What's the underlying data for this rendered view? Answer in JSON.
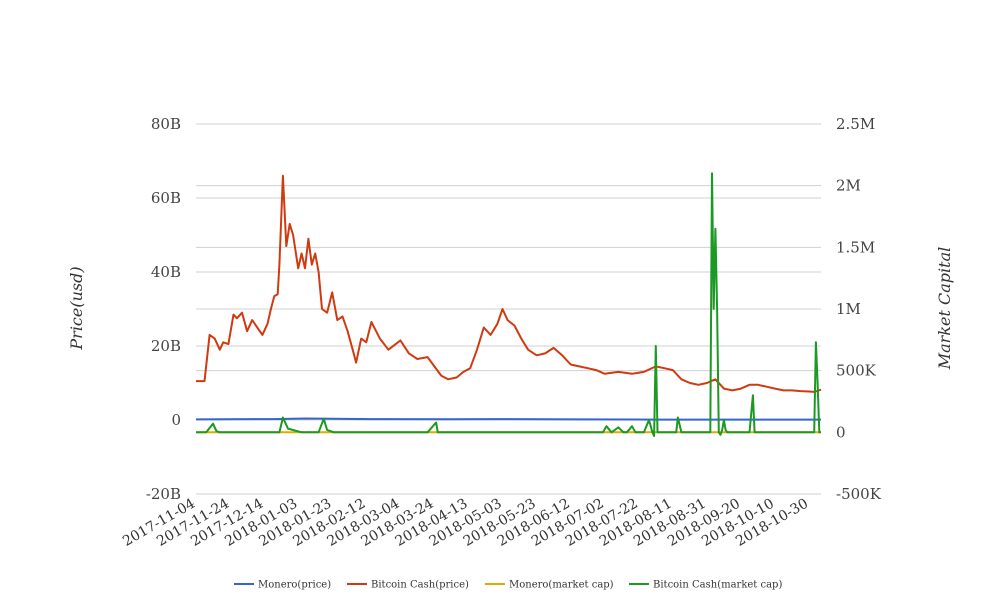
{
  "chart_data": {
    "type": "line",
    "title": "",
    "ylabel_left": "Price(usd)",
    "ylabel_right": "Market Capital",
    "ylim_left": [
      -20000000000,
      80000000000
    ],
    "ylim_right": [
      -500000,
      2500000
    ],
    "yticks_left": [
      "80B",
      "60B",
      "40B",
      "20B",
      "0",
      "-20B"
    ],
    "yticks_right": [
      "2.5M",
      "2M",
      "1.5M",
      "1M",
      "500K",
      "0",
      "-500K"
    ],
    "x_start": "2017-11-04",
    "x_end": "2018-11-06",
    "xticks": [
      "2017-11-04",
      "2017-11-24",
      "2017-12-14",
      "2018-01-03",
      "2018-01-23",
      "2018-02-12",
      "2018-03-04",
      "2018-03-24",
      "2018-04-13",
      "2018-05-03",
      "2018-05-23",
      "2018-06-12",
      "2018-07-02",
      "2018-07-22",
      "2018-08-11",
      "2018-08-31",
      "2018-09-20",
      "2018-10-10",
      "2018-10-30"
    ],
    "grid": true,
    "legend_position": "bottom",
    "series": [
      {
        "name": "Monero(price)",
        "axis": "left",
        "color": "#3366cc",
        "x": [
          "2017-11-04",
          "2017-12-20",
          "2018-01-07",
          "2018-02-15",
          "2018-04-01",
          "2018-05-01",
          "2018-06-15",
          "2018-08-01",
          "2018-09-15",
          "2018-11-06"
        ],
        "y": [
          150000000,
          250000000,
          400000000,
          250000000,
          200000000,
          250000000,
          150000000,
          120000000,
          100000000,
          100000000
        ]
      },
      {
        "name": "Bitcoin Cash(price)",
        "axis": "left",
        "color": "#d03a10",
        "x": [
          "2017-11-04",
          "2017-11-09",
          "2017-11-12",
          "2017-11-15",
          "2017-11-18",
          "2017-11-20",
          "2017-11-23",
          "2017-11-26",
          "2017-11-28",
          "2017-12-01",
          "2017-12-04",
          "2017-12-07",
          "2017-12-10",
          "2017-12-13",
          "2017-12-16",
          "2017-12-18",
          "2017-12-20",
          "2017-12-22",
          "2017-12-23",
          "2017-12-25",
          "2017-12-27",
          "2017-12-29",
          "2017-12-31",
          "2018-01-03",
          "2018-01-05",
          "2018-01-07",
          "2018-01-09",
          "2018-01-11",
          "2018-01-13",
          "2018-01-15",
          "2018-01-17",
          "2018-01-20",
          "2018-01-23",
          "2018-01-26",
          "2018-01-29",
          "2018-02-01",
          "2018-02-04",
          "2018-02-06",
          "2018-02-09",
          "2018-02-12",
          "2018-02-15",
          "2018-02-20",
          "2018-02-25",
          "2018-03-04",
          "2018-03-09",
          "2018-03-14",
          "2018-03-20",
          "2018-03-24",
          "2018-03-28",
          "2018-04-01",
          "2018-04-06",
          "2018-04-10",
          "2018-04-14",
          "2018-04-18",
          "2018-04-22",
          "2018-04-26",
          "2018-04-30",
          "2018-05-03",
          "2018-05-06",
          "2018-05-10",
          "2018-05-14",
          "2018-05-18",
          "2018-05-23",
          "2018-05-28",
          "2018-06-02",
          "2018-06-07",
          "2018-06-12",
          "2018-06-17",
          "2018-06-22",
          "2018-06-27",
          "2018-07-02",
          "2018-07-10",
          "2018-07-18",
          "2018-07-25",
          "2018-08-01",
          "2018-08-06",
          "2018-08-11",
          "2018-08-16",
          "2018-08-21",
          "2018-08-26",
          "2018-08-31",
          "2018-09-05",
          "2018-09-10",
          "2018-09-15",
          "2018-09-20",
          "2018-09-25",
          "2018-09-30",
          "2018-10-05",
          "2018-10-10",
          "2018-10-15",
          "2018-10-20",
          "2018-10-25",
          "2018-10-30",
          "2018-11-02",
          "2018-11-06"
        ],
        "y": [
          10500000000,
          10500000000,
          23000000000,
          22000000000,
          19000000000,
          21000000000,
          20500000000,
          28500000000,
          27500000000,
          29000000000,
          24000000000,
          27000000000,
          25000000000,
          23000000000,
          26000000000,
          30000000000,
          33500000000,
          34000000000,
          42000000000,
          66000000000,
          47000000000,
          53000000000,
          50000000000,
          41000000000,
          45000000000,
          41000000000,
          49000000000,
          42000000000,
          45000000000,
          40000000000,
          30000000000,
          29000000000,
          34500000000,
          27000000000,
          28000000000,
          24000000000,
          19000000000,
          15500000000,
          22000000000,
          21000000000,
          26500000000,
          22000000000,
          19000000000,
          21500000000,
          18000000000,
          16500000000,
          17000000000,
          14500000000,
          12000000000,
          11000000000,
          11500000000,
          13000000000,
          14000000000,
          19000000000,
          25000000000,
          23000000000,
          26000000000,
          30000000000,
          27000000000,
          25500000000,
          22000000000,
          19000000000,
          17500000000,
          18000000000,
          19500000000,
          17500000000,
          15000000000,
          14500000000,
          14000000000,
          13500000000,
          12500000000,
          13000000000,
          12500000000,
          13000000000,
          14500000000,
          14000000000,
          13500000000,
          11000000000,
          10000000000,
          9500000000,
          10000000000,
          11000000000,
          8500000000,
          8000000000,
          8500000000,
          9500000000,
          9500000000,
          9000000000,
          8500000000,
          8000000000,
          8000000000,
          7800000000,
          7700000000,
          7600000000,
          8200000000
        ]
      },
      {
        "name": "Monero(market cap)",
        "axis": "right",
        "color": "#e0aa00",
        "x": [
          "2017-11-04",
          "2018-11-06"
        ],
        "y": [
          0,
          0
        ]
      },
      {
        "name": "Bitcoin Cash(market cap)",
        "axis": "right",
        "color": "#1a9a22",
        "x": [
          "2017-11-04",
          "2017-11-10",
          "2017-11-14",
          "2017-11-16",
          "2017-11-18",
          "2017-12-01",
          "2017-12-14",
          "2017-12-23",
          "2017-12-25",
          "2017-12-28",
          "2018-01-05",
          "2018-01-15",
          "2018-01-18",
          "2018-01-20",
          "2018-01-24",
          "2018-02-15",
          "2018-03-20",
          "2018-03-25",
          "2018-03-26",
          "2018-03-28",
          "2018-05-01",
          "2018-06-15",
          "2018-07-01",
          "2018-07-03",
          "2018-07-06",
          "2018-07-10",
          "2018-07-13",
          "2018-07-15",
          "2018-07-18",
          "2018-07-20",
          "2018-07-25",
          "2018-07-28",
          "2018-07-30",
          "2018-07-31",
          "2018-08-01",
          "2018-08-02",
          "2018-08-04",
          "2018-08-10",
          "2018-08-13",
          "2018-08-14",
          "2018-08-16",
          "2018-08-26",
          "2018-08-28",
          "2018-09-02",
          "2018-09-03",
          "2018-09-04",
          "2018-09-05",
          "2018-09-06",
          "2018-09-07",
          "2018-09-08",
          "2018-09-09",
          "2018-09-10",
          "2018-09-11",
          "2018-09-12",
          "2018-09-14",
          "2018-09-25",
          "2018-09-27",
          "2018-09-28",
          "2018-09-29",
          "2018-10-02",
          "2018-10-10",
          "2018-10-20",
          "2018-10-30",
          "2018-11-02",
          "2018-11-03",
          "2018-11-04",
          "2018-11-05",
          "2018-11-06"
        ],
        "y": [
          0,
          0,
          70000,
          10000,
          0,
          0,
          0,
          0,
          120000,
          30000,
          0,
          0,
          110000,
          20000,
          0,
          0,
          0,
          80000,
          0,
          0,
          0,
          0,
          0,
          50000,
          0,
          40000,
          0,
          0,
          50000,
          0,
          0,
          100000,
          0,
          -30000,
          700000,
          0,
          0,
          0,
          0,
          120000,
          0,
          0,
          0,
          0,
          2100000,
          1000000,
          1650000,
          1000000,
          0,
          -20000,
          20000,
          100000,
          20000,
          0,
          0,
          0,
          300000,
          0,
          0,
          0,
          0,
          0,
          0,
          0,
          730000,
          400000,
          0,
          0
        ]
      }
    ]
  }
}
